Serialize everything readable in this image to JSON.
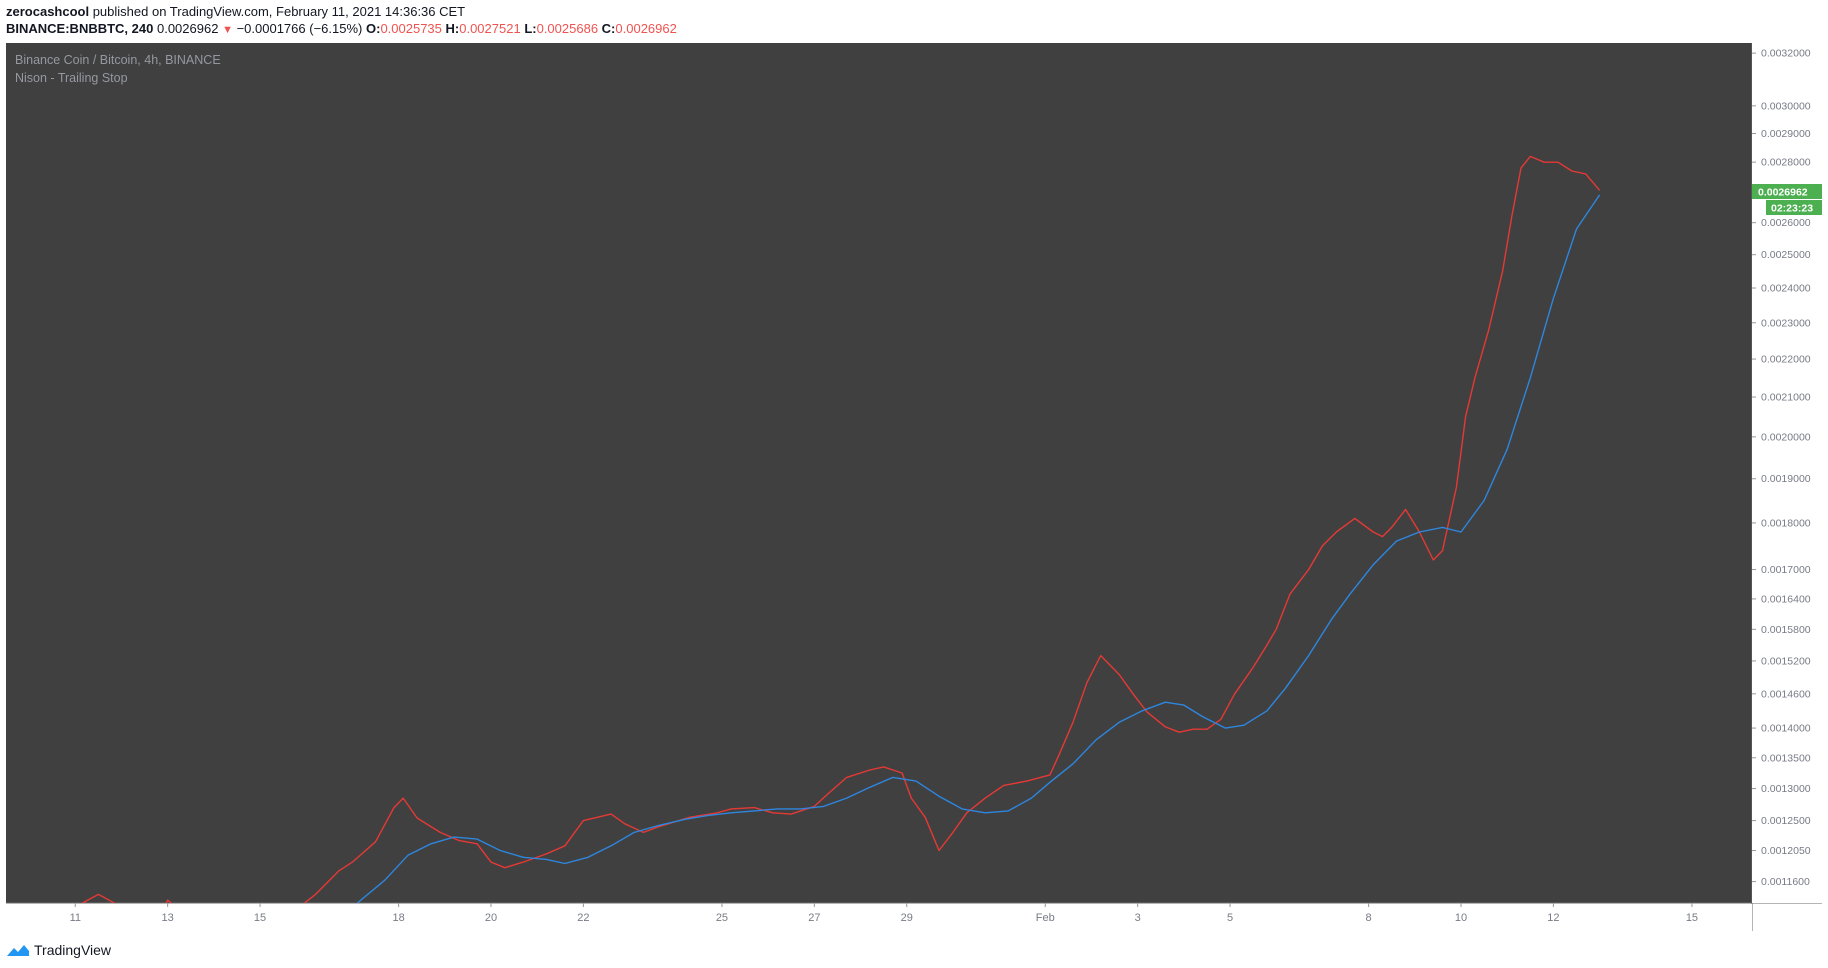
{
  "header": {
    "author": "zerocashcool",
    "published_text": " published on TradingView.com, February 11, 2021 14:36:36 CET",
    "symbol": "BINANCE:BNBBTC, 240",
    "last": "0.0026962",
    "change": "−0.0001766 (−6.15%)",
    "open_label": "O:",
    "open": "0.0025735",
    "high_label": "H:",
    "high": "0.0027521",
    "low_label": "L:",
    "low": "0.0025686",
    "close_label": "C:",
    "close": "0.0026962"
  },
  "footer": {
    "brand": "TradingView",
    "logo_icon": "tradingview-logo-icon"
  },
  "colors": {
    "background": "#404040",
    "red_series": "#e53935",
    "blue_series": "#2e86de",
    "price_tag": "#4caf50",
    "axis_text": "#787b86"
  },
  "chart_data": {
    "type": "line",
    "title": "Binance Coin / Bitcoin, 4h, BINANCE",
    "subtitle": "Nison - Trailing Stop",
    "x_ticks": [
      "11",
      "13",
      "15",
      "18",
      "20",
      "22",
      "25",
      "27",
      "29",
      "Feb",
      "3",
      "5",
      "8",
      "10",
      "12",
      "15"
    ],
    "x_tick_days": [
      11,
      13,
      15,
      18,
      20,
      22,
      25,
      27,
      29,
      32,
      34,
      36,
      39,
      41,
      43,
      46
    ],
    "x_range": [
      9.5,
      47.3
    ],
    "y_scale": "log",
    "y_ticks": [
      "0.0032000",
      "0.0030000",
      "0.0029000",
      "0.0028000",
      "0.0026000",
      "0.0025000",
      "0.0024000",
      "0.0023000",
      "0.0022000",
      "0.0021000",
      "0.0020000",
      "0.0019000",
      "0.0018000",
      "0.0017000",
      "0.0016400",
      "0.0015800",
      "0.0015200",
      "0.0014600",
      "0.0014000",
      "0.0013500",
      "0.0013000",
      "0.0012500",
      "0.0012050",
      "0.0011600"
    ],
    "y_range": [
      0.00113,
      0.00324
    ],
    "last_price_label": "0.0026962",
    "last_price": 0.0026962,
    "countdown_label": "02:23:23",
    "series": [
      {
        "color": "#e53935",
        "points": [
          [
            11.1,
            0.001128
          ],
          [
            11.5,
            0.001142
          ],
          [
            11.9,
            0.001128
          ],
          [
            12.4,
            0.001095
          ],
          [
            12.8,
            0.00111
          ],
          [
            13.0,
            0.001134
          ],
          [
            13.3,
            0.001118
          ],
          [
            14.5,
            0.00108
          ],
          [
            15.8,
            0.001122
          ],
          [
            16.2,
            0.001142
          ],
          [
            16.7,
            0.001175
          ],
          [
            17.0,
            0.001188
          ],
          [
            17.5,
            0.001218
          ],
          [
            17.9,
            0.00127
          ],
          [
            18.1,
            0.001285
          ],
          [
            18.4,
            0.001254
          ],
          [
            18.9,
            0.001232
          ],
          [
            19.3,
            0.00122
          ],
          [
            19.7,
            0.001215
          ],
          [
            20.0,
            0.001188
          ],
          [
            20.3,
            0.00118
          ],
          [
            20.7,
            0.001188
          ],
          [
            21.2,
            0.0012
          ],
          [
            21.6,
            0.001212
          ],
          [
            22.0,
            0.00125
          ],
          [
            22.3,
            0.001255
          ],
          [
            22.6,
            0.00126
          ],
          [
            22.9,
            0.001245
          ],
          [
            23.3,
            0.001232
          ],
          [
            23.6,
            0.00124
          ],
          [
            24.3,
            0.001255
          ],
          [
            24.9,
            0.001262
          ],
          [
            25.2,
            0.001268
          ],
          [
            25.7,
            0.00127
          ],
          [
            26.1,
            0.001262
          ],
          [
            26.5,
            0.00126
          ],
          [
            27.0,
            0.001272
          ],
          [
            27.3,
            0.001292
          ],
          [
            27.7,
            0.001318
          ],
          [
            28.2,
            0.00133
          ],
          [
            28.5,
            0.001335
          ],
          [
            28.9,
            0.001325
          ],
          [
            29.1,
            0.001285
          ],
          [
            29.4,
            0.001255
          ],
          [
            29.7,
            0.001205
          ],
          [
            30.0,
            0.001232
          ],
          [
            30.3,
            0.001262
          ],
          [
            30.7,
            0.001285
          ],
          [
            31.1,
            0.001305
          ],
          [
            31.6,
            0.001312
          ],
          [
            32.1,
            0.001322
          ],
          [
            32.3,
            0.001355
          ],
          [
            32.6,
            0.00141
          ],
          [
            32.9,
            0.00148
          ],
          [
            33.2,
            0.00153
          ],
          [
            33.6,
            0.001495
          ],
          [
            33.9,
            0.00146
          ],
          [
            34.2,
            0.001428
          ],
          [
            34.6,
            0.001402
          ],
          [
            34.9,
            0.001393
          ],
          [
            35.2,
            0.001398
          ],
          [
            35.5,
            0.001398
          ],
          [
            35.8,
            0.001415
          ],
          [
            36.1,
            0.00146
          ],
          [
            36.5,
            0.001508
          ],
          [
            36.8,
            0.00155
          ],
          [
            37.0,
            0.00158
          ],
          [
            37.3,
            0.00165
          ],
          [
            37.7,
            0.0017
          ],
          [
            38.0,
            0.00175
          ],
          [
            38.3,
            0.00178
          ],
          [
            38.7,
            0.00181
          ],
          [
            39.1,
            0.00178
          ],
          [
            39.3,
            0.00177
          ],
          [
            39.5,
            0.00179
          ],
          [
            39.8,
            0.00183
          ],
          [
            40.1,
            0.00178
          ],
          [
            40.4,
            0.00172
          ],
          [
            40.6,
            0.00174
          ],
          [
            40.9,
            0.00188
          ],
          [
            41.1,
            0.00205
          ],
          [
            41.3,
            0.00215
          ],
          [
            41.6,
            0.00228
          ],
          [
            41.9,
            0.00245
          ],
          [
            42.1,
            0.00262
          ],
          [
            42.3,
            0.00278
          ],
          [
            42.5,
            0.00282
          ],
          [
            42.8,
            0.0028
          ],
          [
            43.1,
            0.0028
          ],
          [
            43.4,
            0.00277
          ],
          [
            43.7,
            0.00276
          ],
          [
            44.0,
            0.002705
          ]
        ]
      },
      {
        "color": "#2e86de",
        "points": [
          [
            16.7,
            0.001108
          ],
          [
            17.2,
            0.001135
          ],
          [
            17.7,
            0.001162
          ],
          [
            18.2,
            0.001198
          ],
          [
            18.7,
            0.001215
          ],
          [
            19.2,
            0.001225
          ],
          [
            19.7,
            0.001222
          ],
          [
            20.2,
            0.001205
          ],
          [
            20.7,
            0.001195
          ],
          [
            21.2,
            0.001192
          ],
          [
            21.6,
            0.001186
          ],
          [
            22.1,
            0.001195
          ],
          [
            22.6,
            0.001212
          ],
          [
            23.1,
            0.001232
          ],
          [
            23.6,
            0.001242
          ],
          [
            24.2,
            0.001252
          ],
          [
            24.7,
            0.001258
          ],
          [
            25.2,
            0.001262
          ],
          [
            25.7,
            0.001265
          ],
          [
            26.2,
            0.001268
          ],
          [
            26.7,
            0.001268
          ],
          [
            27.2,
            0.001272
          ],
          [
            27.7,
            0.001285
          ],
          [
            28.2,
            0.001302
          ],
          [
            28.7,
            0.001318
          ],
          [
            29.2,
            0.001312
          ],
          [
            29.7,
            0.001288
          ],
          [
            30.2,
            0.001268
          ],
          [
            30.7,
            0.001262
          ],
          [
            31.2,
            0.001265
          ],
          [
            31.7,
            0.001285
          ],
          [
            32.1,
            0.00131
          ],
          [
            32.6,
            0.00134
          ],
          [
            33.1,
            0.00138
          ],
          [
            33.6,
            0.00141
          ],
          [
            34.1,
            0.00143
          ],
          [
            34.6,
            0.001445
          ],
          [
            35.0,
            0.00144
          ],
          [
            35.4,
            0.00142
          ],
          [
            35.9,
            0.0014
          ],
          [
            36.3,
            0.001405
          ],
          [
            36.8,
            0.00143
          ],
          [
            37.2,
            0.00147
          ],
          [
            37.7,
            0.00153
          ],
          [
            38.2,
            0.0016
          ],
          [
            38.6,
            0.00165
          ],
          [
            39.1,
            0.00171
          ],
          [
            39.6,
            0.00176
          ],
          [
            40.1,
            0.00178
          ],
          [
            40.6,
            0.00179
          ],
          [
            41.0,
            0.00178
          ],
          [
            41.5,
            0.00185
          ],
          [
            42.0,
            0.00197
          ],
          [
            42.5,
            0.00215
          ],
          [
            43.0,
            0.00237
          ],
          [
            43.5,
            0.00258
          ],
          [
            44.0,
            0.00269
          ]
        ]
      }
    ]
  }
}
